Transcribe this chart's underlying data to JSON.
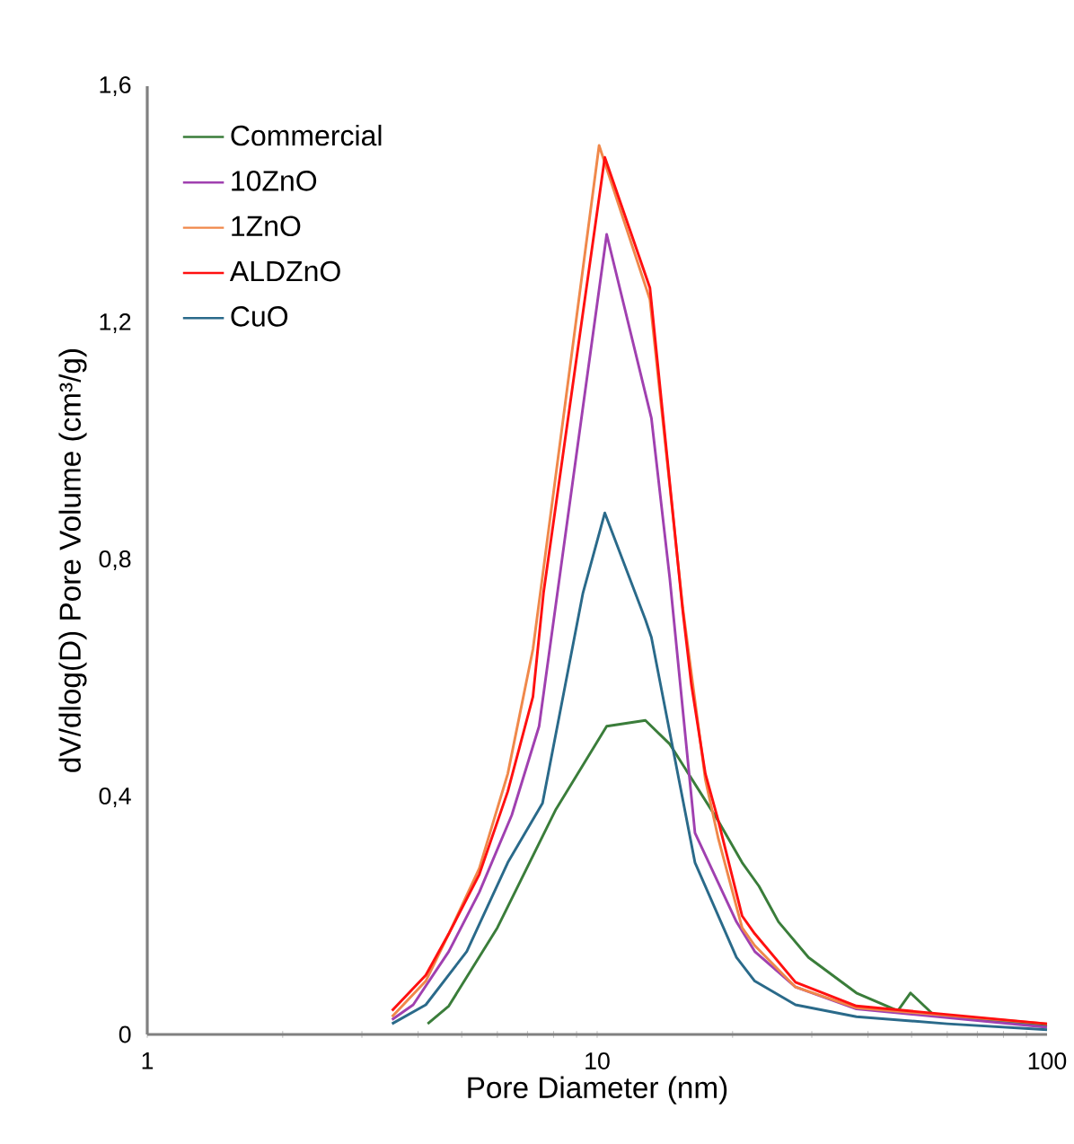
{
  "chart_data": {
    "type": "line",
    "xlabel": "Pore Diameter (nm)",
    "ylabel": "dV/dlog(D) Pore Volume (cm³/g)",
    "log": "x",
    "xlim": [
      1,
      100
    ],
    "xticks": [
      1,
      10,
      100
    ],
    "ylim": [
      0,
      1.6
    ],
    "yticks": [
      0,
      {
        "value": 0.4,
        "label": "0,4"
      },
      {
        "value": 0.8,
        "label": "0,8"
      },
      {
        "value": 1.2,
        "label": "1,2"
      },
      {
        "value": 1.6,
        "label": "1,6"
      }
    ],
    "grid": false,
    "legend": "top left",
    "marker": "none",
    "line_style": "solid",
    "series": [
      {
        "name": "Commercial",
        "color": "#3a7d3a",
        "x": [
          4.2,
          4.68,
          6.0,
          8.1,
          10.5,
          12.8,
          14.5,
          18.6,
          21,
          22.9,
          25.3,
          29.5,
          37.7,
          46.6,
          49.7,
          56,
          100
        ],
        "values": [
          0.018,
          0.048,
          0.18,
          0.38,
          0.52,
          0.53,
          0.49,
          0.36,
          0.29,
          0.25,
          0.19,
          0.13,
          0.07,
          0.04,
          0.07,
          0.033,
          0.015
        ]
      },
      {
        "name": "10ZnO",
        "color": "#a040b0",
        "x": [
          3.5,
          3.9,
          4.68,
          5.47,
          6.46,
          7.43,
          10.5,
          13.2,
          14.5,
          16.5,
          20.4,
          22.4,
          27.6,
          37.7,
          100
        ],
        "values": [
          0.025,
          0.05,
          0.14,
          0.24,
          0.37,
          0.52,
          1.35,
          1.04,
          0.77,
          0.34,
          0.19,
          0.14,
          0.08,
          0.043,
          0.012
        ]
      },
      {
        "name": "1ZnO",
        "color": "#f0884a",
        "x": [
          3.5,
          4.16,
          4.68,
          5.47,
          6.33,
          7.2,
          10.1,
          13.1,
          15.5,
          17.4,
          18.6,
          21,
          22.4,
          27.6,
          37.7,
          100
        ],
        "values": [
          0.03,
          0.09,
          0.17,
          0.28,
          0.44,
          0.65,
          1.5,
          1.24,
          0.72,
          0.43,
          0.33,
          0.18,
          0.15,
          0.08,
          0.045,
          0.018
        ]
      },
      {
        "name": "ALDZnO",
        "color": "#ff1010",
        "x": [
          3.5,
          4.16,
          4.68,
          5.47,
          6.33,
          7.2,
          7.6,
          10.4,
          13.1,
          15.5,
          16.2,
          17.4,
          18.6,
          21,
          22.4,
          27.6,
          37.7,
          100
        ],
        "values": [
          0.04,
          0.1,
          0.17,
          0.27,
          0.41,
          0.57,
          0.745,
          1.48,
          1.26,
          0.715,
          0.59,
          0.44,
          0.36,
          0.2,
          0.17,
          0.088,
          0.048,
          0.018
        ]
      },
      {
        "name": "CuO",
        "color": "#2a6a8a",
        "x": [
          3.5,
          4.16,
          5.13,
          6.33,
          7.56,
          9.3,
          10.4,
          12.8,
          13.2,
          16.5,
          20.4,
          22.4,
          27.6,
          37.7,
          60,
          100
        ],
        "values": [
          0.018,
          0.05,
          0.14,
          0.29,
          0.39,
          0.745,
          0.88,
          0.7,
          0.67,
          0.29,
          0.13,
          0.09,
          0.05,
          0.03,
          0.018,
          0.008
        ]
      }
    ]
  }
}
